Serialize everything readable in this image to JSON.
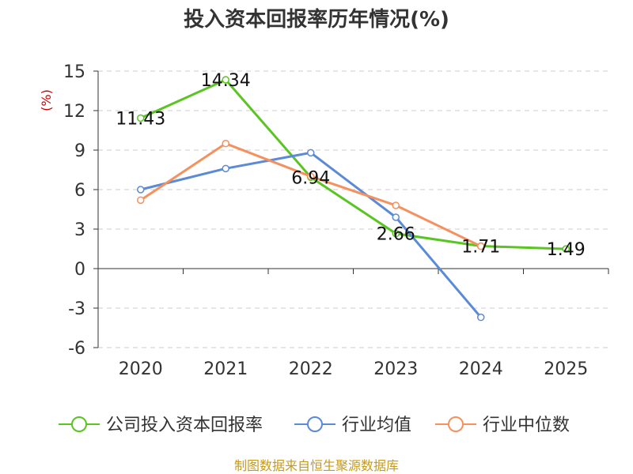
{
  "title": "投入资本回报率历年情况(%)",
  "source": "制图数据来自恒生聚源数据库",
  "colors": {
    "company": "#5ac421",
    "industry_avg": "#5b8ad7",
    "industry_median": "#f4915e",
    "unit": "#cc0000",
    "source": "#c59a1d"
  },
  "chart_data": {
    "type": "line",
    "title": "投入资本回报率历年情况(%)",
    "ylabel": "(%)",
    "xlabel": "",
    "categories": [
      "2020",
      "2021",
      "2022",
      "2023",
      "2024",
      "2025"
    ],
    "ylim": [
      -6,
      15
    ],
    "yticks": [
      15,
      12,
      9,
      6,
      3,
      0,
      -3,
      -6
    ],
    "grid": true,
    "legend_position": "bottom",
    "series": [
      {
        "name": "公司投入资本回报率",
        "color": "#5ac421",
        "values": [
          11.43,
          14.34,
          6.94,
          2.66,
          1.71,
          1.49
        ],
        "labels": [
          "11.43",
          "14.34",
          "6.94",
          "2.66",
          "1.71",
          "1.49"
        ]
      },
      {
        "name": "行业均值",
        "color": "#5b8ad7",
        "values": [
          6.0,
          7.6,
          8.8,
          3.9,
          -3.7,
          null
        ],
        "labels": []
      },
      {
        "name": "行业中位数",
        "color": "#f4915e",
        "values": [
          5.2,
          9.5,
          7.0,
          4.8,
          1.7,
          null
        ],
        "labels": []
      }
    ]
  }
}
